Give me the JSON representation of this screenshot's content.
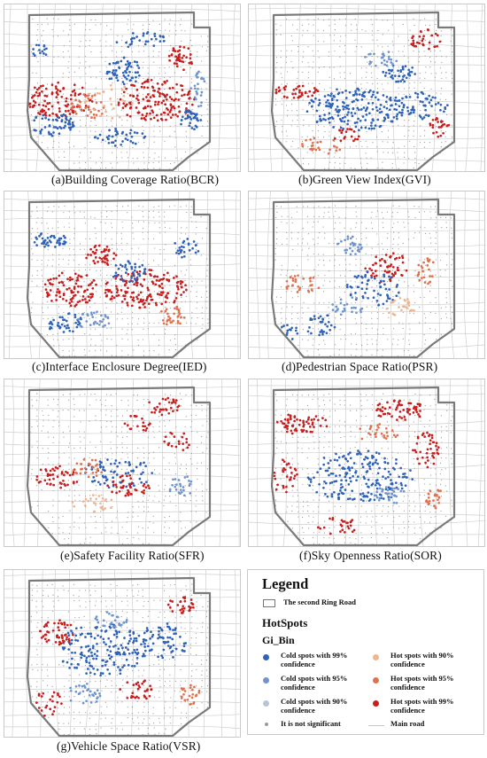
{
  "panels": [
    {
      "id": "a",
      "caption": "(a)Building Coverage Ratio(BCR)"
    },
    {
      "id": "b",
      "caption": "(b)Green View Index(GVI)"
    },
    {
      "id": "c",
      "caption": "(c)Interface Enclosure Degree(IED)"
    },
    {
      "id": "d",
      "caption": "(d)Pedestrian Space Ratio(PSR)"
    },
    {
      "id": "e",
      "caption": "(e)Safety Facility Ratio(SFR)"
    },
    {
      "id": "f",
      "caption": "(f)Sky Openness Ratio(SOR)"
    },
    {
      "id": "g",
      "caption": "(g)Vehicle Space Ratio(VSR)"
    }
  ],
  "legend": {
    "title": "Legend",
    "ring_road_label": "The second Ring Road",
    "hotspots_title": "HotSpots",
    "gi_bin_title": "Gi_Bin",
    "items": [
      {
        "label": "Cold spots with 99% confidence",
        "color": "#2f63b8"
      },
      {
        "label": "Cold spots with 95% confidence",
        "color": "#6f95cc"
      },
      {
        "label": "Cold spots with 90% confidence",
        "color": "#b9c4d4"
      },
      {
        "label": "It is not significant",
        "color": "#9a9a9a"
      },
      {
        "label": "Hot spots with 90% confidence",
        "color": "#efb58f"
      },
      {
        "label": "Hot spots with 95% confidence",
        "color": "#e0714d"
      },
      {
        "label": "Hot spots with 99% confidence",
        "color": "#c81e1e"
      },
      {
        "label": "Main road",
        "color": "#c8c8c8"
      }
    ]
  },
  "colors": {
    "cold99": "#2f63b8",
    "cold95": "#6f95cc",
    "cold90": "#b9c4d4",
    "notsig": "#9a9a9a",
    "hot90": "#efb58f",
    "hot95": "#e0714d",
    "hot99": "#c81e1e",
    "ring": "#7a7a7a",
    "road": "#cfcfcf"
  }
}
